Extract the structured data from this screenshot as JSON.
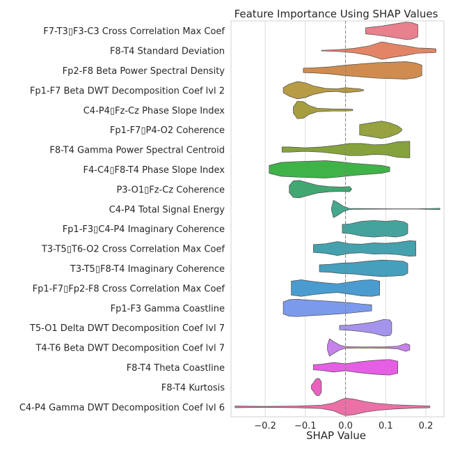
{
  "chart_data": {
    "type": "violin",
    "title": "Feature Importance Using SHAP Values",
    "xlabel": "SHAP Value",
    "ylabel": "",
    "xlim": [
      -0.285,
      0.245
    ],
    "xticks": [
      -0.2,
      -0.1,
      0.0,
      0.1,
      0.2
    ],
    "xtick_labels": [
      "−0.2",
      "−0.1",
      "0.0",
      "0.1",
      "0.2"
    ],
    "grid": "vertical",
    "zero_line": "dashed",
    "features": [
      {
        "label": "F7-T3▯F3-C3 Cross Correlation Max Coef",
        "color": "#e8808e",
        "profile": [
          [
            0.05,
            0.35
          ],
          [
            0.07,
            0.45
          ],
          [
            0.09,
            0.55
          ],
          [
            0.11,
            0.7
          ],
          [
            0.13,
            0.85
          ],
          [
            0.15,
            1.0
          ],
          [
            0.165,
            0.95
          ],
          [
            0.18,
            0.7
          ]
        ]
      },
      {
        "label": "F8-T4 Standard Deviation",
        "color": "#e48466",
        "profile": [
          [
            -0.06,
            0.03
          ],
          [
            -0.02,
            0.1
          ],
          [
            0.02,
            0.25
          ],
          [
            0.06,
            0.55
          ],
          [
            0.09,
            1.0
          ],
          [
            0.12,
            0.75
          ],
          [
            0.15,
            0.55
          ],
          [
            0.18,
            0.3
          ],
          [
            0.21,
            0.25
          ],
          [
            0.225,
            0.2
          ]
        ]
      },
      {
        "label": "Fp2-F8 Beta Power Spectral Density",
        "color": "#d08c4e",
        "profile": [
          [
            -0.105,
            0.25
          ],
          [
            -0.08,
            0.3
          ],
          [
            -0.04,
            0.4
          ],
          [
            0.0,
            0.6
          ],
          [
            0.04,
            0.75
          ],
          [
            0.08,
            0.9
          ],
          [
            0.12,
            0.95
          ],
          [
            0.15,
            1.0
          ],
          [
            0.175,
            0.85
          ],
          [
            0.19,
            0.6
          ]
        ]
      },
      {
        "label": "Fp1-F7 Beta DWT Decomposition Coef lvl 2",
        "color": "#b79b45",
        "profile": [
          [
            -0.155,
            0.3
          ],
          [
            -0.14,
            0.7
          ],
          [
            -0.12,
            1.0
          ],
          [
            -0.1,
            0.85
          ],
          [
            -0.08,
            0.5
          ],
          [
            -0.05,
            0.2
          ],
          [
            -0.02,
            0.15
          ],
          [
            0.0,
            0.3
          ],
          [
            0.02,
            0.2
          ],
          [
            0.035,
            0.15
          ],
          [
            0.045,
            0.05
          ]
        ]
      },
      {
        "label": "C4-P4▯Fz-Cz Phase Slope Index",
        "color": "#a69e3e",
        "profile": [
          [
            -0.13,
            0.35
          ],
          [
            -0.12,
            1.0
          ],
          [
            -0.105,
            0.95
          ],
          [
            -0.09,
            0.5
          ],
          [
            -0.07,
            0.2
          ],
          [
            -0.03,
            0.12
          ],
          [
            0.0,
            0.12
          ],
          [
            0.018,
            0.08
          ]
        ]
      },
      {
        "label": "Fp1-F7▯P4-O2 Coherence",
        "color": "#96a33e",
        "profile": [
          [
            0.035,
            0.6
          ],
          [
            0.05,
            0.7
          ],
          [
            0.07,
            0.85
          ],
          [
            0.09,
            1.0
          ],
          [
            0.11,
            0.8
          ],
          [
            0.13,
            0.45
          ],
          [
            0.14,
            0.1
          ]
        ]
      },
      {
        "label": "F8-T4 Gamma Power Spectral Centroid",
        "color": "#86a23c",
        "profile": [
          [
            -0.158,
            0.3
          ],
          [
            -0.14,
            0.3
          ],
          [
            -0.1,
            0.2
          ],
          [
            -0.06,
            0.3
          ],
          [
            -0.02,
            0.5
          ],
          [
            0.01,
            0.7
          ],
          [
            0.04,
            0.7
          ],
          [
            0.07,
            0.55
          ],
          [
            0.1,
            0.6
          ],
          [
            0.13,
            0.9
          ],
          [
            0.16,
            0.95
          ]
        ]
      },
      {
        "label": "F4-C4▯F8-T4 Phase Slope Index",
        "color": "#3fb347",
        "profile": [
          [
            -0.19,
            0.45
          ],
          [
            -0.16,
            0.8
          ],
          [
            -0.12,
            0.9
          ],
          [
            -0.08,
            0.95
          ],
          [
            -0.05,
            1.0
          ],
          [
            -0.02,
            0.9
          ],
          [
            0.02,
            0.7
          ],
          [
            0.06,
            0.55
          ],
          [
            0.09,
            0.45
          ],
          [
            0.11,
            0.25
          ]
        ]
      },
      {
        "label": "P3-O1▯Fz-Cz Coherence",
        "color": "#43a772",
        "profile": [
          [
            -0.14,
            0.4
          ],
          [
            -0.13,
            0.95
          ],
          [
            -0.115,
            1.0
          ],
          [
            -0.095,
            0.75
          ],
          [
            -0.07,
            0.45
          ],
          [
            -0.04,
            0.3
          ],
          [
            -0.01,
            0.25
          ],
          [
            0.01,
            0.3
          ],
          [
            0.015,
            0.05
          ]
        ]
      },
      {
        "label": "C4-P4 Total Signal Energy",
        "color": "#45a88e",
        "profile": [
          [
            -0.035,
            0.1
          ],
          [
            -0.03,
            1.0
          ],
          [
            -0.02,
            0.75
          ],
          [
            -0.005,
            0.3
          ],
          [
            0.01,
            0.06
          ],
          [
            0.06,
            0.03
          ],
          [
            0.12,
            0.02
          ],
          [
            0.18,
            0.02
          ],
          [
            0.21,
            0.05
          ],
          [
            0.235,
            0.08
          ]
        ]
      },
      {
        "label": "Fp1-F3▯C4-P4 Imaginary Coherence",
        "color": "#45a39d",
        "profile": [
          [
            -0.008,
            0.5
          ],
          [
            0.01,
            0.55
          ],
          [
            0.04,
            0.85
          ],
          [
            0.07,
            0.95
          ],
          [
            0.1,
            0.85
          ],
          [
            0.125,
            0.95
          ],
          [
            0.145,
            0.8
          ],
          [
            0.155,
            0.55
          ]
        ]
      },
      {
        "label": "T3-T5▯T6-O2 Cross Correlation Max Coef",
        "color": "#44a1ad",
        "profile": [
          [
            -0.08,
            0.45
          ],
          [
            -0.05,
            0.55
          ],
          [
            -0.02,
            0.8
          ],
          [
            0.01,
            0.55
          ],
          [
            0.04,
            0.5
          ],
          [
            0.07,
            0.65
          ],
          [
            0.1,
            0.6
          ],
          [
            0.13,
            0.7
          ],
          [
            0.16,
            0.9
          ],
          [
            0.175,
            0.85
          ]
        ]
      },
      {
        "label": "T3-T5▯F8-T4 Imaginary Coherence",
        "color": "#469fbd",
        "profile": [
          [
            -0.065,
            0.4
          ],
          [
            -0.04,
            0.45
          ],
          [
            -0.01,
            0.6
          ],
          [
            0.02,
            0.65
          ],
          [
            0.05,
            0.8
          ],
          [
            0.09,
            0.95
          ],
          [
            0.12,
            0.9
          ],
          [
            0.145,
            0.8
          ],
          [
            0.155,
            0.55
          ]
        ]
      },
      {
        "label": "Fp1-F7▯Fp2-F8 Cross Correlation Max Coef",
        "color": "#4a9cd0",
        "profile": [
          [
            -0.135,
            0.8
          ],
          [
            -0.11,
            0.95
          ],
          [
            -0.08,
            0.75
          ],
          [
            -0.05,
            0.6
          ],
          [
            -0.02,
            0.5
          ],
          [
            0.01,
            0.7
          ],
          [
            0.04,
            0.9
          ],
          [
            0.065,
            0.95
          ],
          [
            0.085,
            0.8
          ]
        ]
      },
      {
        "label": "Fp1-F3 Gamma Coastline",
        "color": "#7c9aeb",
        "profile": [
          [
            -0.155,
            0.7
          ],
          [
            -0.14,
            0.95
          ],
          [
            -0.12,
            1.0
          ],
          [
            -0.09,
            0.9
          ],
          [
            -0.05,
            0.8
          ],
          [
            -0.02,
            0.7
          ],
          [
            0.01,
            0.6
          ],
          [
            0.04,
            0.45
          ],
          [
            0.065,
            0.35
          ]
        ]
      },
      {
        "label": "T5-O1 Delta DWT Decomposition Coef lvl 7",
        "color": "#a694ec",
        "profile": [
          [
            -0.015,
            0.25
          ],
          [
            0.01,
            0.3
          ],
          [
            0.04,
            0.45
          ],
          [
            0.07,
            0.65
          ],
          [
            0.095,
            0.95
          ],
          [
            0.11,
            0.9
          ],
          [
            0.115,
            0.6
          ]
        ]
      },
      {
        "label": "T4-T6 Beta DWT Decomposition Coef lvl 7",
        "color": "#c682ea",
        "profile": [
          [
            -0.045,
            0.3
          ],
          [
            -0.04,
            1.0
          ],
          [
            -0.03,
            0.7
          ],
          [
            -0.015,
            0.3
          ],
          [
            0.0,
            0.1
          ],
          [
            0.04,
            0.06
          ],
          [
            0.1,
            0.08
          ],
          [
            0.13,
            0.15
          ],
          [
            0.15,
            0.45
          ],
          [
            0.16,
            0.3
          ]
        ]
      },
      {
        "label": "F8-T4 Theta Coastline",
        "color": "#e65ee3",
        "profile": [
          [
            -0.08,
            0.3
          ],
          [
            -0.06,
            0.35
          ],
          [
            -0.03,
            0.55
          ],
          [
            0.0,
            0.4
          ],
          [
            0.03,
            0.6
          ],
          [
            0.06,
            0.75
          ],
          [
            0.09,
            0.85
          ],
          [
            0.11,
            0.9
          ],
          [
            0.13,
            0.7
          ]
        ]
      },
      {
        "label": "F8-T4 Kurtosis",
        "color": "#ea62c0",
        "profile": [
          [
            -0.085,
            0.2
          ],
          [
            -0.08,
            0.5
          ],
          [
            -0.075,
            0.85
          ],
          [
            -0.07,
            1.0
          ],
          [
            -0.065,
            0.95
          ],
          [
            -0.06,
            0.6
          ]
        ]
      },
      {
        "label": "C4-P4 Gamma DWT Decomposition Coef lvl 6",
        "color": "#ea70a6",
        "profile": [
          [
            -0.275,
            0.1
          ],
          [
            -0.2,
            0.06
          ],
          [
            -0.12,
            0.1
          ],
          [
            -0.06,
            0.2
          ],
          [
            -0.03,
            0.45
          ],
          [
            -0.01,
            0.85
          ],
          [
            0.0,
            1.0
          ],
          [
            0.02,
            0.9
          ],
          [
            0.05,
            0.6
          ],
          [
            0.08,
            0.4
          ],
          [
            0.12,
            0.25
          ],
          [
            0.17,
            0.15
          ],
          [
            0.21,
            0.1
          ]
        ]
      }
    ]
  }
}
